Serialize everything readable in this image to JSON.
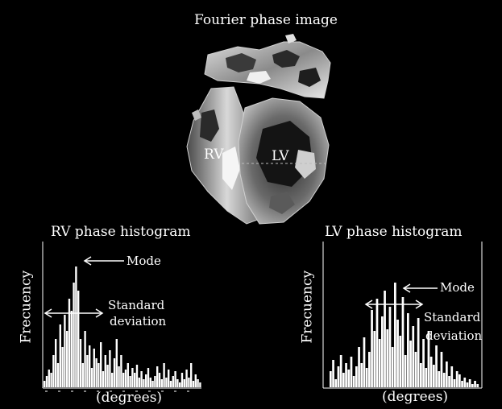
{
  "figure": {
    "title": "Fourier phase image",
    "labels": {
      "rv": "RV",
      "lv": "LV"
    }
  },
  "rv_histogram": {
    "title": "RV phase histogram",
    "ylabel": "Frecuency",
    "xlabel": "(degrees)",
    "mode_label": "Mode",
    "std_label_line1": "Standard",
    "std_label_line2": "deviation"
  },
  "lv_histogram": {
    "title": "LV phase histogram",
    "ylabel": "Frecuency",
    "xlabel": "(degrees)",
    "mode_label": "Mode",
    "std_label_line1": "Standard",
    "std_label_line2": "deviation"
  },
  "colors": {
    "background": "#000000",
    "foreground": "#ffffff",
    "phase_gray": "#9a9a9a"
  }
}
